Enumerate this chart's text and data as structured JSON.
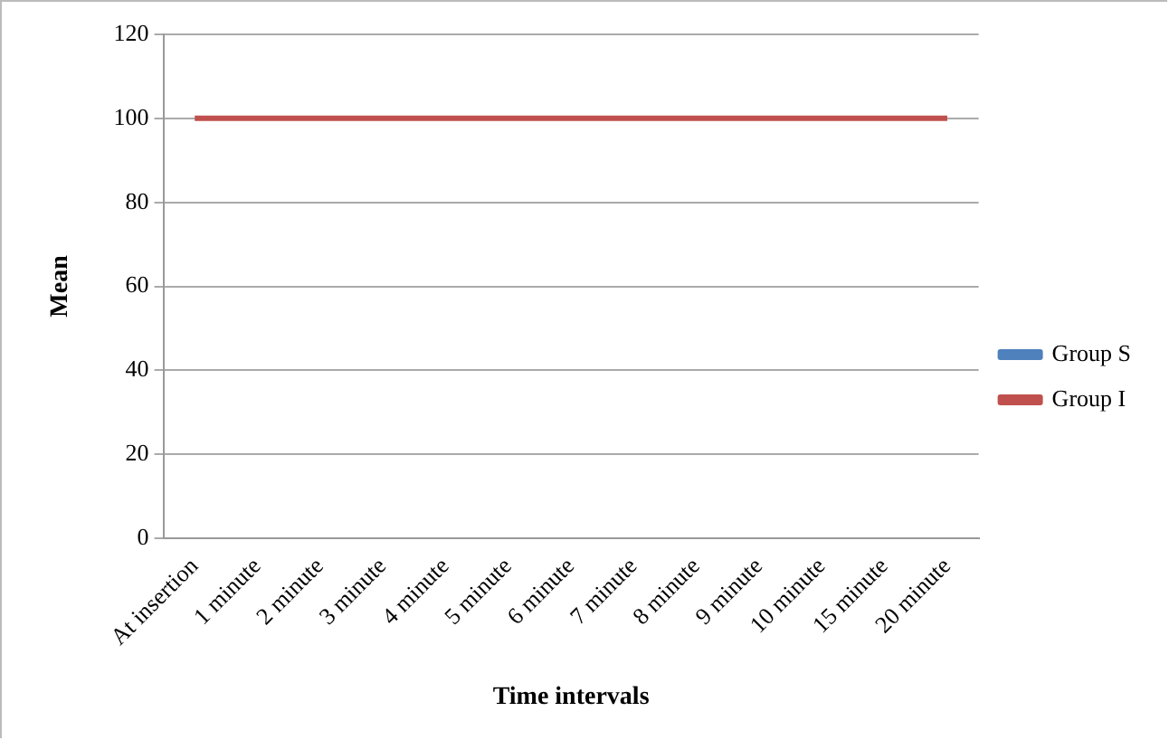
{
  "chart_data": {
    "type": "line",
    "xlabel": "Time intervals",
    "ylabel": "Mean",
    "categories": [
      "At insertion",
      "1 minute",
      "2 minute",
      "3 minute",
      "4 minute",
      "5 minute",
      "6 minute",
      "7 minute",
      "8 minute",
      "9 minute",
      "10 minute",
      "15 minute",
      "20 minute"
    ],
    "series": [
      {
        "name": "Group S",
        "color": "#4f81bd",
        "values": [
          null,
          null,
          null,
          null,
          null,
          null,
          null,
          null,
          null,
          null,
          null,
          null,
          null
        ]
      },
      {
        "name": "Group I",
        "color": "#c0504d",
        "values": [
          100,
          100,
          100,
          100,
          100,
          100,
          100,
          100,
          100,
          100,
          100,
          100,
          100
        ]
      }
    ],
    "ylim": [
      0,
      120
    ],
    "yticks": [
      0,
      20,
      40,
      60,
      80,
      100,
      120
    ],
    "grid": "y",
    "legend": "right",
    "marker": "none"
  }
}
